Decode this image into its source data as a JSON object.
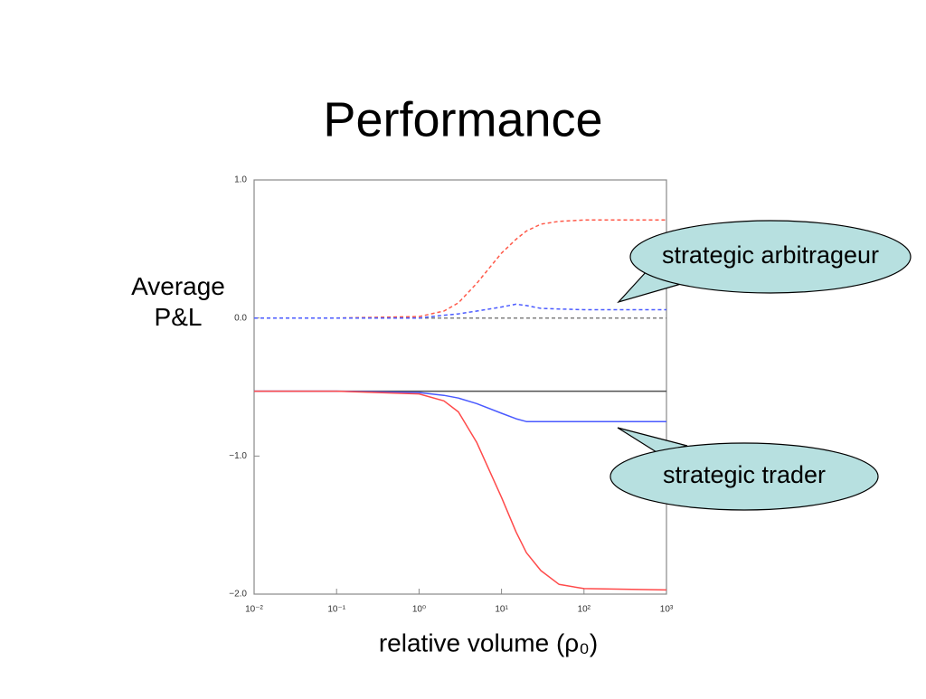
{
  "chart_data": {
    "type": "line",
    "title": "Performance",
    "y_label": "Average P&L",
    "x_label": "relative volume (ρ₀)",
    "xscale": "log",
    "xlim": [
      0.01,
      1000
    ],
    "ylim": [
      -2,
      1
    ],
    "xticks": [
      {
        "value": 0.01,
        "label": "10⁻²"
      },
      {
        "value": 0.1,
        "label": "10⁻¹"
      },
      {
        "value": 1,
        "label": "10⁰"
      },
      {
        "value": 10,
        "label": "10¹"
      },
      {
        "value": 100,
        "label": "10²"
      },
      {
        "value": 1000,
        "label": "10³"
      }
    ],
    "yticks": [
      {
        "value": 1,
        "label": "1.0"
      },
      {
        "value": 0,
        "label": "0.0"
      },
      {
        "value": -1,
        "label": "−1.0"
      },
      {
        "value": -2,
        "label": "−2.0"
      }
    ],
    "x": [
      0.01,
      0.1,
      1,
      2,
      3,
      5,
      10,
      15,
      20,
      30,
      50,
      100,
      1000
    ],
    "series": [
      {
        "color": "#808080",
        "style": "dashed",
        "values": [
          0,
          0,
          0,
          0,
          0,
          0,
          0,
          0,
          0,
          0,
          0,
          0,
          0
        ]
      },
      {
        "color": "#ff5a4a",
        "style": "dashed",
        "values": [
          0,
          0,
          0.01,
          0.05,
          0.11,
          0.25,
          0.47,
          0.57,
          0.63,
          0.68,
          0.7,
          0.71,
          0.71
        ]
      },
      {
        "color": "#4a5aff",
        "style": "dashed",
        "values": [
          0,
          0,
          0,
          0.02,
          0.03,
          0.05,
          0.08,
          0.1,
          0.09,
          0.07,
          0.065,
          0.06,
          0.06
        ]
      },
      {
        "color": "#505050",
        "style": "solid",
        "values": [
          -0.53,
          -0.53,
          -0.53,
          -0.53,
          -0.53,
          -0.53,
          -0.53,
          -0.53,
          -0.53,
          -0.53,
          -0.53,
          -0.53,
          -0.53
        ]
      },
      {
        "color": "#4a5aff",
        "style": "solid",
        "values": [
          -0.53,
          -0.53,
          -0.54,
          -0.56,
          -0.58,
          -0.62,
          -0.69,
          -0.73,
          -0.75,
          -0.75,
          -0.75,
          -0.75,
          -0.75
        ]
      },
      {
        "color": "#ff4a4a",
        "style": "solid",
        "values": [
          -0.53,
          -0.53,
          -0.55,
          -0.6,
          -0.68,
          -0.9,
          -1.3,
          -1.55,
          -1.7,
          -1.83,
          -1.93,
          -1.96,
          -1.97
        ]
      }
    ],
    "annotations": [
      "strategic arbitrageur",
      "strategic trader"
    ]
  }
}
